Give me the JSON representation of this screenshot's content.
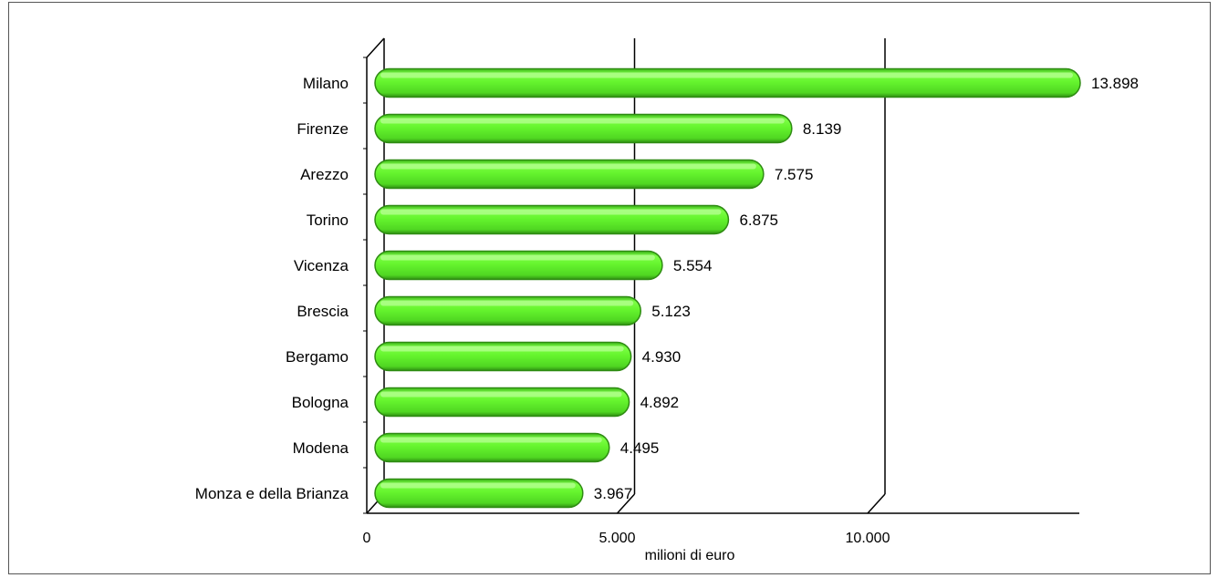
{
  "chart_data": {
    "type": "bar",
    "orientation": "horizontal",
    "categories": [
      "Milano",
      "Firenze",
      "Arezzo",
      "Torino",
      "Vicenza",
      "Brescia",
      "Bergamo",
      "Bologna",
      "Modena",
      "Monza e della Brianza"
    ],
    "values": [
      13898,
      8139,
      7575,
      6875,
      5554,
      5123,
      4930,
      4892,
      4495,
      3967
    ],
    "value_labels": [
      "13.898",
      "8.139",
      "7.575",
      "6.875",
      "5.554",
      "5.123",
      "4.930",
      "4.892",
      "4.495",
      "3.967"
    ],
    "xlabel": "milioni di euro",
    "xlim": [
      0,
      14000
    ],
    "x_ticks": [
      0,
      5000,
      10000
    ],
    "x_tick_labels": [
      "0",
      "5.000",
      "10.000"
    ],
    "grid": true,
    "bar_color": "#66ff33",
    "bar_edge_color": "#2e8b12"
  }
}
